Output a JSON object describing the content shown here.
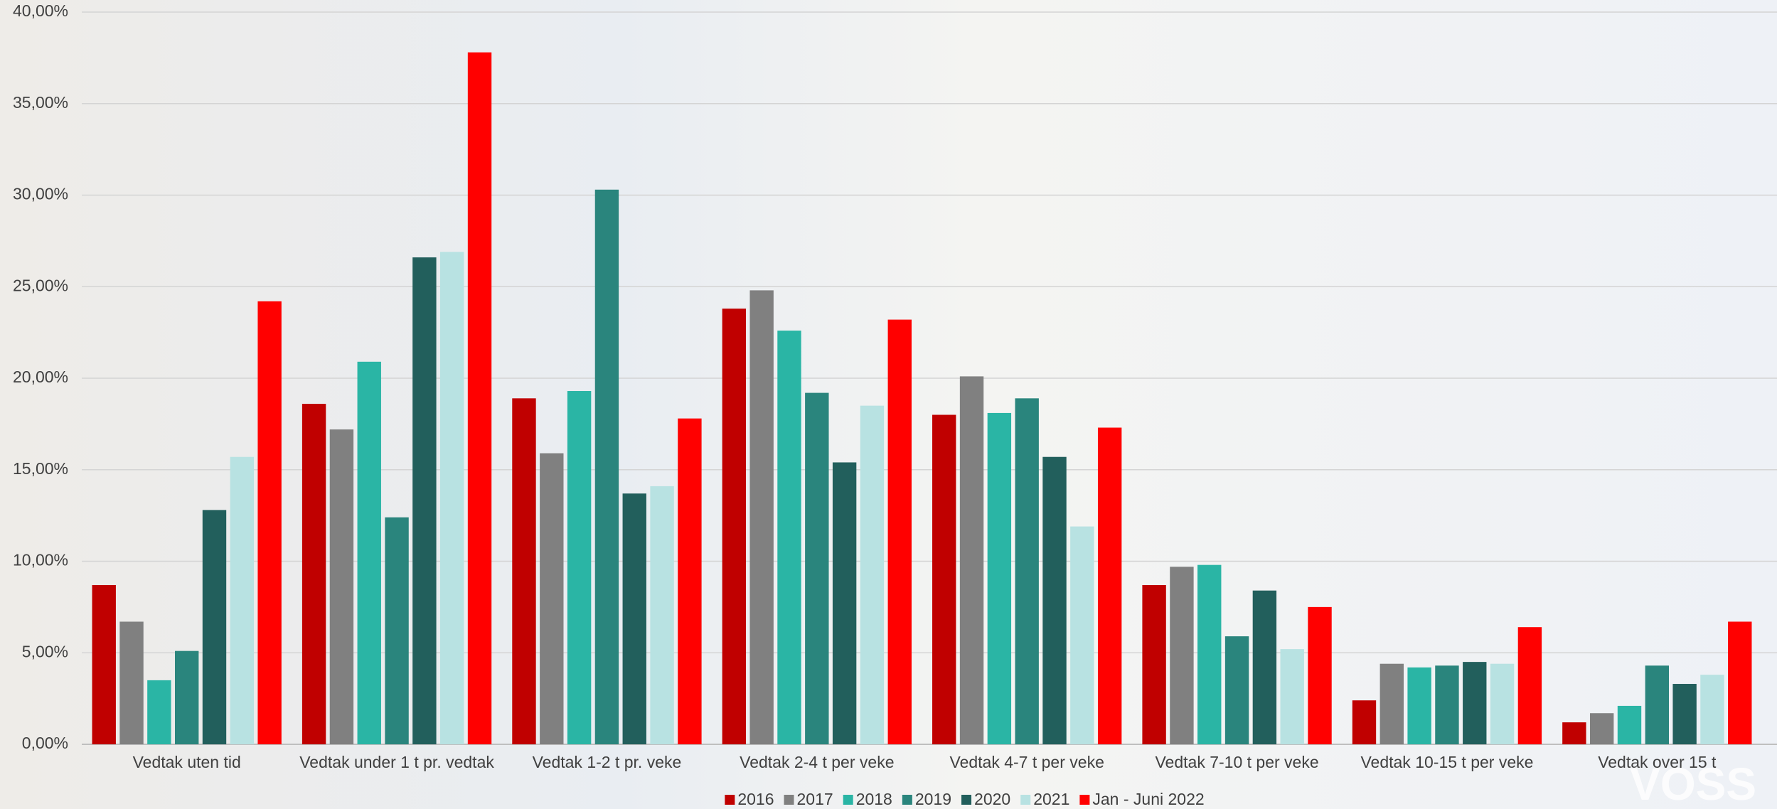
{
  "chart_data": {
    "type": "bar",
    "categories": [
      "Vedtak uten tid",
      "Vedtak under 1 t pr. vedtak",
      "Vedtak 1-2 t pr. veke",
      "Vedtak 2-4 t per veke",
      "Vedtak 4-7 t per veke",
      "Vedtak 7-10 t per veke",
      "Vedtak 10-15 t per veke",
      "Vedtak over 15 t"
    ],
    "series": [
      {
        "name": "2016",
        "color": "#c00000",
        "values": [
          8.7,
          18.6,
          18.9,
          23.8,
          18.0,
          8.7,
          2.4,
          1.2
        ]
      },
      {
        "name": "2017",
        "color": "#808080",
        "values": [
          6.7,
          17.2,
          15.9,
          24.8,
          20.1,
          9.7,
          4.4,
          1.7
        ]
      },
      {
        "name": "2018",
        "color": "#2ab5a5",
        "values": [
          3.5,
          20.9,
          19.3,
          22.6,
          18.1,
          9.8,
          4.2,
          2.1
        ]
      },
      {
        "name": "2019",
        "color": "#2a857d",
        "values": [
          5.1,
          12.4,
          30.3,
          19.2,
          18.9,
          5.9,
          4.3,
          4.3
        ]
      },
      {
        "name": "2020",
        "color": "#225f5c",
        "values": [
          12.8,
          26.6,
          13.7,
          15.4,
          15.7,
          8.4,
          4.5,
          3.3
        ]
      },
      {
        "name": "2021",
        "color": "#b8e2e2",
        "values": [
          15.7,
          26.9,
          14.1,
          18.5,
          11.9,
          5.2,
          4.4,
          3.8
        ]
      },
      {
        "name": "Jan - Juni 2022",
        "color": "#ff0000",
        "values": [
          24.2,
          37.8,
          17.8,
          23.2,
          17.3,
          7.5,
          6.4,
          6.7
        ]
      }
    ],
    "ylim": [
      0,
      40
    ],
    "yticks": [
      {
        "value": 0,
        "label": "0,00%"
      },
      {
        "value": 5,
        "label": "5,00%"
      },
      {
        "value": 10,
        "label": "10,00%"
      },
      {
        "value": 15,
        "label": "15,00%"
      },
      {
        "value": 20,
        "label": "20,00%"
      },
      {
        "value": 25,
        "label": "25,00%"
      },
      {
        "value": 30,
        "label": "30,00%"
      },
      {
        "value": 35,
        "label": "35,00%"
      },
      {
        "value": 40,
        "label": "40,00%"
      }
    ],
    "grid": true,
    "legend": "bottom",
    "logo": "VOSS"
  }
}
